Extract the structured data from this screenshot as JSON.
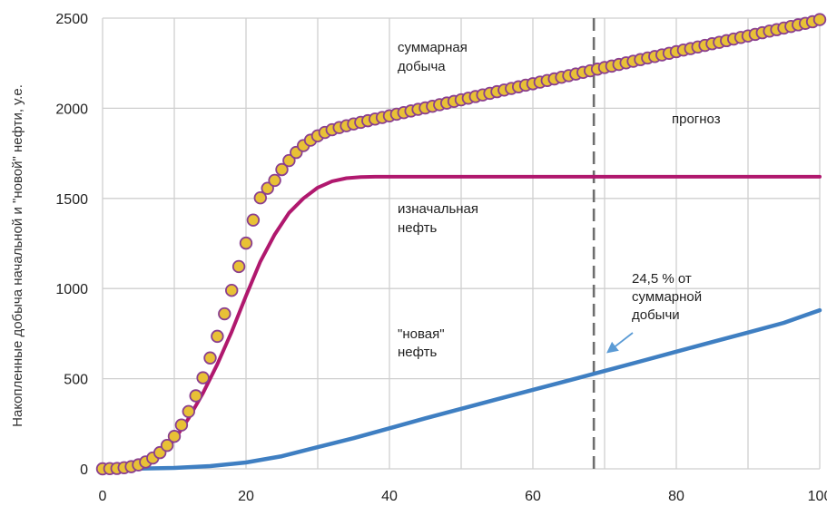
{
  "chart_data": {
    "type": "line",
    "xlabel": "",
    "ylabel": "Накопленные добыча начальной и \"новой\" нефти, у.е.",
    "xlim": [
      0,
      100
    ],
    "ylim": [
      0,
      2500
    ],
    "xticks": [
      0,
      20,
      40,
      60,
      80,
      100
    ],
    "yticks": [
      0,
      500,
      1000,
      1500,
      2000,
      2500
    ],
    "grid": true,
    "forecast_line_x": 68.5,
    "colors": {
      "total": "#e8c136",
      "total_edge": "#8a3f8f",
      "initial": "#b0186e",
      "new": "#3f7fc2",
      "forecast": "#6e6e6e",
      "arrow": "#5b9bd5"
    },
    "series": [
      {
        "key": "total",
        "x": [
          0,
          1,
          2,
          3,
          4,
          5,
          6,
          7,
          8,
          9,
          10,
          11,
          12,
          13,
          14,
          15,
          16,
          17,
          18,
          19,
          20,
          21,
          22,
          23,
          24,
          25,
          26,
          27,
          28,
          29,
          30,
          31,
          32,
          33,
          34,
          35,
          36,
          37,
          38,
          39,
          40,
          41,
          42,
          43,
          44,
          45,
          46,
          47,
          48,
          49,
          50,
          51,
          52,
          53,
          54,
          55,
          56,
          57,
          58,
          59,
          60,
          61,
          62,
          63,
          64,
          65,
          66,
          67,
          68,
          69,
          70,
          71,
          72,
          73,
          74,
          75,
          76,
          77,
          78,
          79,
          80,
          81,
          82,
          83,
          84,
          85,
          86,
          87,
          88,
          89,
          90,
          91,
          92,
          93,
          94,
          95,
          96,
          97,
          98,
          99,
          100
        ],
        "values": [
          0,
          1,
          2,
          6,
          12,
          22,
          38,
          60,
          90,
          130,
          180,
          243,
          318,
          405,
          505,
          615,
          735,
          860,
          990,
          1122,
          1252,
          1380,
          1503,
          1556,
          1600,
          1660,
          1710,
          1755,
          1793,
          1823,
          1847,
          1866,
          1881,
          1893,
          1903,
          1913,
          1922,
          1931,
          1940,
          1949,
          1958,
          1967,
          1976,
          1985,
          1994,
          2002,
          2011,
          2020,
          2029,
          2038,
          2047,
          2056,
          2065,
          2074,
          2083,
          2092,
          2101,
          2110,
          2119,
          2128,
          2136,
          2145,
          2154,
          2163,
          2172,
          2181,
          2190,
          2199,
          2208,
          2217,
          2226,
          2234,
          2243,
          2252,
          2261,
          2270,
          2279,
          2287,
          2296,
          2305,
          2314,
          2323,
          2331,
          2340,
          2349,
          2358,
          2366,
          2375,
          2384,
          2393,
          2401,
          2410,
          2419,
          2428,
          2436,
          2445,
          2454,
          2463,
          2471,
          2480,
          2492
        ]
      },
      {
        "key": "initial",
        "x": [
          0,
          2,
          4,
          6,
          8,
          10,
          12,
          14,
          16,
          18,
          20,
          22,
          24,
          26,
          28,
          30,
          32,
          34,
          36,
          38,
          40,
          42,
          44,
          46,
          50,
          60,
          70,
          80,
          90,
          100
        ],
        "values": [
          0,
          2,
          10,
          35,
          80,
          160,
          280,
          420,
          580,
          760,
          960,
          1150,
          1300,
          1420,
          1500,
          1560,
          1595,
          1612,
          1618,
          1620,
          1620,
          1620,
          1620,
          1620,
          1620,
          1620,
          1620,
          1620,
          1620,
          1620
        ]
      },
      {
        "key": "new",
        "x": [
          0,
          5,
          10,
          15,
          20,
          25,
          30,
          35,
          40,
          45,
          50,
          55,
          60,
          65,
          70,
          75,
          80,
          85,
          90,
          95,
          100
        ],
        "values": [
          0,
          1,
          5,
          15,
          35,
          70,
          120,
          170,
          225,
          280,
          333,
          386,
          438,
          490,
          543,
          596,
          650,
          703,
          756,
          810,
          880
        ]
      }
    ],
    "annotations": {
      "total_line1": "суммарная",
      "total_line2": "добыча",
      "initial_line1": "изначальная",
      "initial_line2": "нефть",
      "new_line1": "\"новая\"",
      "new_line2": "нефть",
      "forecast": "прогноз",
      "share_line1": "24,5 % от",
      "share_line2": "суммарной",
      "share_line3": "добычи"
    }
  }
}
